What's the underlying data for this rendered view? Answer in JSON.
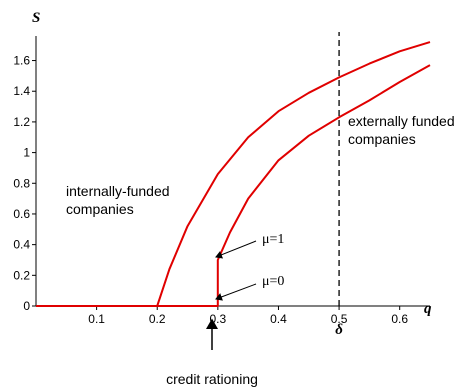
{
  "chart_data": {
    "type": "line",
    "title": "",
    "xlabel": "q",
    "ylabel": "S",
    "xlim": [
      0,
      0.65
    ],
    "ylim": [
      0,
      1.76
    ],
    "x_ticks": [
      0.1,
      0.2,
      0.3,
      0.4,
      0.5,
      0.6
    ],
    "x_tick_labels": [
      "0.1",
      "0.2",
      "0.3",
      "0.4",
      "0.5",
      "0.6"
    ],
    "y_ticks": [
      0,
      0.2,
      0.4,
      0.6,
      0.8,
      1.0,
      1.2,
      1.4,
      1.6
    ],
    "y_tick_labels": [
      "0",
      "0.2",
      "0.4",
      "0.6",
      "0.8",
      "1",
      "1.2",
      "1.4",
      "1.6"
    ],
    "grid": false,
    "line_color": "#e00000",
    "series": [
      {
        "x": [
          0,
          0.2,
          0.22,
          0.25,
          0.3,
          0.35,
          0.4,
          0.45,
          0.5,
          0.55,
          0.6,
          0.65
        ],
        "y": [
          0,
          0,
          0.24,
          0.52,
          0.86,
          1.1,
          1.27,
          1.39,
          1.49,
          1.58,
          1.66,
          1.72
        ]
      },
      {
        "x": [
          0,
          0.3,
          0.3,
          0.32,
          0.35,
          0.4,
          0.45,
          0.5,
          0.55,
          0.6,
          0.65
        ],
        "y": [
          0,
          0,
          0.3,
          0.48,
          0.7,
          0.95,
          1.11,
          1.23,
          1.34,
          1.46,
          1.57
        ]
      }
    ],
    "vertical_line": {
      "x": 0.5,
      "label": "δ",
      "style": "dashed"
    },
    "annotations": {
      "internal": [
        "internally-funded",
        "companies"
      ],
      "external": [
        "externally funded",
        "companies"
      ],
      "mu1": "μ=1",
      "mu0": "μ=0",
      "rationing": "credit rationing"
    }
  }
}
